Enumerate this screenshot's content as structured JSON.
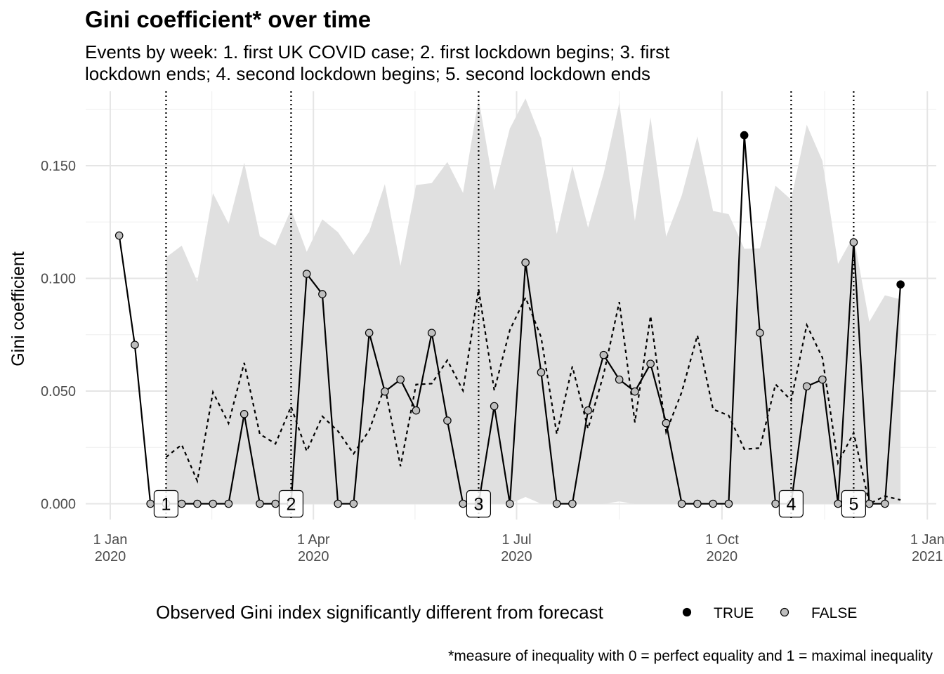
{
  "chart_data": {
    "type": "line",
    "title": "Gini coefficient* over time",
    "subtitle_lines": [
      "Events by week: 1. first UK COVID case; 2. first lockdown begins; 3. first",
      "lockdown ends; 4. second lockdown begins; 5. second lockdown ends"
    ],
    "ylabel": "Gini coefficient",
    "caption": "*measure of inequality with 0 = perfect equality and 1 = maximal inequality",
    "ylim": [
      -0.007,
      0.183
    ],
    "y_ticks": [
      {
        "value": 0.0,
        "label": "0.000"
      },
      {
        "value": 0.05,
        "label": "0.050"
      },
      {
        "value": 0.1,
        "label": "0.100"
      },
      {
        "value": 0.15,
        "label": "0.150"
      }
    ],
    "xlim": [
      "2019-12-21",
      "2021-01-05"
    ],
    "x_ticks": [
      {
        "date": "2020-01-01",
        "line1": "1 Jan",
        "line2": "2020"
      },
      {
        "date": "2020-04-01",
        "line1": "1 Apr",
        "line2": "2020"
      },
      {
        "date": "2020-07-01",
        "line1": "1 Jul",
        "line2": "2020"
      },
      {
        "date": "2020-10-01",
        "line1": "1 Oct",
        "line2": "2020"
      },
      {
        "date": "2021-01-01",
        "line1": "1 Jan",
        "line2": "2021"
      }
    ],
    "grid": true,
    "legend": {
      "title": "Observed Gini index significantly different from forecast",
      "position": "bottom",
      "entries": [
        {
          "label": "TRUE",
          "color": "#000000"
        },
        {
          "label": "FALSE",
          "color": "#bebebe"
        }
      ]
    },
    "events": [
      {
        "label": "1",
        "date": "2020-01-26"
      },
      {
        "label": "2",
        "date": "2020-03-22"
      },
      {
        "label": "3",
        "date": "2020-06-14"
      },
      {
        "label": "4",
        "date": "2020-11-01"
      },
      {
        "label": "5",
        "date": "2020-11-29"
      }
    ],
    "observed": {
      "name": "Observed",
      "points": [
        {
          "x": "2020-01-05",
          "y": 0.119,
          "sig": false
        },
        {
          "x": "2020-01-12",
          "y": 0.0705,
          "sig": false
        },
        {
          "x": "2020-01-19",
          "y": 0.0,
          "sig": false
        },
        {
          "x": "2020-01-26",
          "y": 0.0,
          "sig": false
        },
        {
          "x": "2020-02-02",
          "y": 0.0,
          "sig": false
        },
        {
          "x": "2020-02-09",
          "y": 0.0,
          "sig": false
        },
        {
          "x": "2020-02-16",
          "y": 0.0,
          "sig": false
        },
        {
          "x": "2020-02-23",
          "y": 0.0,
          "sig": false
        },
        {
          "x": "2020-03-01",
          "y": 0.0398,
          "sig": false
        },
        {
          "x": "2020-03-08",
          "y": 0.0,
          "sig": false
        },
        {
          "x": "2020-03-15",
          "y": 0.0,
          "sig": false
        },
        {
          "x": "2020-03-22",
          "y": 0.0,
          "sig": false
        },
        {
          "x": "2020-03-29",
          "y": 0.102,
          "sig": false
        },
        {
          "x": "2020-04-05",
          "y": 0.093,
          "sig": false
        },
        {
          "x": "2020-04-12",
          "y": 0.0,
          "sig": false
        },
        {
          "x": "2020-04-19",
          "y": 0.0,
          "sig": false
        },
        {
          "x": "2020-04-26",
          "y": 0.0758,
          "sig": false
        },
        {
          "x": "2020-05-03",
          "y": 0.0498,
          "sig": false
        },
        {
          "x": "2020-05-10",
          "y": 0.0551,
          "sig": false
        },
        {
          "x": "2020-05-17",
          "y": 0.0414,
          "sig": false
        },
        {
          "x": "2020-05-24",
          "y": 0.0758,
          "sig": false
        },
        {
          "x": "2020-05-31",
          "y": 0.0369,
          "sig": false
        },
        {
          "x": "2020-06-07",
          "y": 0.0,
          "sig": false
        },
        {
          "x": "2020-06-14",
          "y": 0.0,
          "sig": true
        },
        {
          "x": "2020-06-21",
          "y": 0.0433,
          "sig": false
        },
        {
          "x": "2020-06-28",
          "y": 0.0,
          "sig": false
        },
        {
          "x": "2020-07-05",
          "y": 0.107,
          "sig": false
        },
        {
          "x": "2020-07-12",
          "y": 0.0583,
          "sig": false
        },
        {
          "x": "2020-07-19",
          "y": 0.0,
          "sig": false
        },
        {
          "x": "2020-07-26",
          "y": 0.0,
          "sig": false
        },
        {
          "x": "2020-08-02",
          "y": 0.0414,
          "sig": false
        },
        {
          "x": "2020-08-09",
          "y": 0.066,
          "sig": false
        },
        {
          "x": "2020-08-16",
          "y": 0.0551,
          "sig": false
        },
        {
          "x": "2020-08-23",
          "y": 0.0498,
          "sig": false
        },
        {
          "x": "2020-08-30",
          "y": 0.0621,
          "sig": false
        },
        {
          "x": "2020-09-06",
          "y": 0.0358,
          "sig": false
        },
        {
          "x": "2020-09-13",
          "y": 0.0,
          "sig": false
        },
        {
          "x": "2020-09-20",
          "y": 0.0,
          "sig": false
        },
        {
          "x": "2020-09-27",
          "y": 0.0,
          "sig": false
        },
        {
          "x": "2020-10-04",
          "y": 0.0,
          "sig": false
        },
        {
          "x": "2020-10-11",
          "y": 0.1635,
          "sig": true
        },
        {
          "x": "2020-10-18",
          "y": 0.0758,
          "sig": false
        },
        {
          "x": "2020-10-25",
          "y": 0.0,
          "sig": false
        },
        {
          "x": "2020-11-01",
          "y": 0.0,
          "sig": false
        },
        {
          "x": "2020-11-08",
          "y": 0.0521,
          "sig": false
        },
        {
          "x": "2020-11-15",
          "y": 0.0551,
          "sig": false
        },
        {
          "x": "2020-11-22",
          "y": 0.0,
          "sig": false
        },
        {
          "x": "2020-11-29",
          "y": 0.116,
          "sig": false
        },
        {
          "x": "2020-12-06",
          "y": 0.0,
          "sig": false
        },
        {
          "x": "2020-12-13",
          "y": 0.0,
          "sig": false
        },
        {
          "x": "2020-12-20",
          "y": 0.0973,
          "sig": true
        }
      ]
    },
    "forecast": {
      "x_start": "2020-01-26",
      "x_step_days": 7,
      "mean": [
        0.0207,
        0.0262,
        0.0101,
        0.0495,
        0.0357,
        0.0625,
        0.0309,
        0.0266,
        0.0431,
        0.0233,
        0.0388,
        0.0322,
        0.0222,
        0.0326,
        0.0521,
        0.0166,
        0.0529,
        0.0533,
        0.0637,
        0.0502,
        0.0952,
        0.0503,
        0.0771,
        0.0915,
        0.0739,
        0.0309,
        0.0609,
        0.0333,
        0.0574,
        0.0895,
        0.0361,
        0.0833,
        0.0318,
        0.0496,
        0.0747,
        0.0419,
        0.0392,
        0.0242,
        0.0247,
        0.053,
        0.0459,
        0.0793,
        0.0648,
        0.0181,
        0.0315,
        0.0,
        0.0034,
        0.0017
      ],
      "upper": [
        0.1093,
        0.1145,
        0.0985,
        0.1378,
        0.1242,
        0.1513,
        0.1187,
        0.1145,
        0.1306,
        0.1118,
        0.1262,
        0.1205,
        0.1104,
        0.1207,
        0.1418,
        0.1055,
        0.1414,
        0.1423,
        0.1516,
        0.1379,
        0.1798,
        0.1391,
        0.1665,
        0.1798,
        0.1621,
        0.1197,
        0.1498,
        0.1225,
        0.1465,
        0.1779,
        0.1255,
        0.1714,
        0.1185,
        0.1368,
        0.163,
        0.1299,
        0.1285,
        0.1131,
        0.1133,
        0.1411,
        0.1349,
        0.1681,
        0.1521,
        0.1064,
        0.1189,
        0.0807,
        0.0925,
        0.0907
      ],
      "lower": [
        0.0,
        0.0,
        0.0,
        0.0,
        0.0,
        0.0,
        0.0,
        0.0,
        0.0,
        0.0,
        0.0,
        0.0,
        0.0,
        0.0,
        0.0,
        0.0,
        0.0,
        0.0,
        0.0,
        0.0,
        0.0,
        0.0,
        0.0,
        0.003,
        0.0,
        0.0,
        0.0,
        0.0,
        0.0,
        0.001,
        0.0,
        0.0,
        0.0,
        0.0,
        0.0,
        0.0,
        0.0,
        0.0,
        0.0,
        0.0,
        0.0,
        0.0,
        0.0,
        0.0,
        0.0,
        0.0,
        0.0,
        0.0
      ]
    },
    "colors": {
      "band": "#e0e0e0",
      "grid_major": "#e5e5e5",
      "grid_minor": "#f0f0f0",
      "line": "#000000",
      "point_true": "#000000",
      "point_false": "#bebebe"
    }
  }
}
